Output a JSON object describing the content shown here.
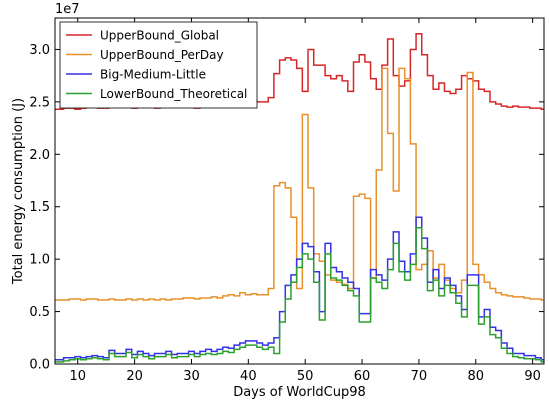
{
  "chart_data": {
    "type": "line",
    "step": true,
    "title": "",
    "xlabel": "Days of WorldCup98",
    "ylabel": "Total energy consumption (J)",
    "y_scale_label": "1e7",
    "xlim": [
      6,
      92
    ],
    "ylim": [
      0,
      3.3
    ],
    "x_ticks": [
      10,
      20,
      30,
      40,
      50,
      60,
      70,
      80,
      90
    ],
    "y_ticks": [
      0.0,
      0.5,
      1.0,
      1.5,
      2.0,
      2.5,
      3.0
    ],
    "grid": false,
    "legend_position": "top-left",
    "x": [
      6,
      7,
      8,
      9,
      10,
      11,
      12,
      13,
      14,
      15,
      16,
      17,
      18,
      19,
      20,
      21,
      22,
      23,
      24,
      25,
      26,
      27,
      28,
      29,
      30,
      31,
      32,
      33,
      34,
      35,
      36,
      37,
      38,
      39,
      40,
      41,
      42,
      43,
      44,
      45,
      46,
      47,
      48,
      49,
      50,
      51,
      52,
      53,
      54,
      55,
      56,
      57,
      58,
      59,
      60,
      61,
      62,
      63,
      64,
      65,
      66,
      67,
      68,
      69,
      70,
      71,
      72,
      73,
      74,
      75,
      76,
      77,
      78,
      79,
      80,
      81,
      82,
      83,
      84,
      85,
      86,
      87,
      88,
      89,
      90,
      91,
      92
    ],
    "series": [
      {
        "name": "UpperBound_Global",
        "color": "#d62728",
        "values": [
          2.43,
          2.43,
          2.44,
          2.44,
          2.43,
          2.44,
          2.45,
          2.45,
          2.44,
          2.44,
          2.47,
          2.45,
          2.46,
          2.45,
          2.44,
          2.46,
          2.45,
          2.46,
          2.44,
          2.45,
          2.47,
          2.45,
          2.45,
          2.46,
          2.45,
          2.44,
          2.46,
          2.47,
          2.48,
          2.47,
          2.48,
          2.48,
          2.5,
          2.5,
          2.52,
          2.52,
          2.5,
          2.5,
          2.54,
          2.77,
          2.9,
          2.92,
          2.9,
          2.82,
          2.6,
          3.0,
          2.85,
          2.85,
          2.75,
          2.72,
          2.75,
          2.7,
          2.6,
          2.88,
          2.95,
          2.88,
          2.72,
          2.62,
          2.85,
          3.1,
          2.75,
          2.65,
          2.7,
          3.0,
          3.15,
          2.95,
          2.75,
          2.62,
          2.68,
          2.6,
          2.58,
          2.62,
          2.75,
          2.72,
          2.7,
          2.62,
          2.6,
          2.5,
          2.48,
          2.46,
          2.45,
          2.46,
          2.45,
          2.45,
          2.44,
          2.44,
          2.43
        ]
      },
      {
        "name": "UpperBound_PerDay",
        "color": "#e8912a",
        "values": [
          0.61,
          0.61,
          0.61,
          0.62,
          0.62,
          0.61,
          0.62,
          0.62,
          0.61,
          0.61,
          0.62,
          0.61,
          0.61,
          0.62,
          0.61,
          0.62,
          0.61,
          0.62,
          0.61,
          0.62,
          0.61,
          0.62,
          0.62,
          0.63,
          0.63,
          0.62,
          0.63,
          0.63,
          0.64,
          0.63,
          0.65,
          0.66,
          0.65,
          0.68,
          0.66,
          0.67,
          0.66,
          0.66,
          0.72,
          1.7,
          1.73,
          1.68,
          1.4,
          0.72,
          2.38,
          1.68,
          1.05,
          0.98,
          0.85,
          0.8,
          0.78,
          0.76,
          0.72,
          1.6,
          1.62,
          1.58,
          0.82,
          1.85,
          2.82,
          2.2,
          1.65,
          2.82,
          2.72,
          2.1,
          0.9,
          0.95,
          1.08,
          0.82,
          0.95,
          0.8,
          0.72,
          0.68,
          0.8,
          2.78,
          0.95,
          0.85,
          0.78,
          0.72,
          0.68,
          0.66,
          0.65,
          0.64,
          0.64,
          0.63,
          0.62,
          0.62,
          0.61
        ]
      },
      {
        "name": "Big-Medium-Little",
        "color": "#3232e6",
        "values": [
          0.04,
          0.04,
          0.06,
          0.06,
          0.07,
          0.06,
          0.07,
          0.08,
          0.07,
          0.06,
          0.13,
          0.1,
          0.1,
          0.14,
          0.09,
          0.12,
          0.1,
          0.08,
          0.1,
          0.1,
          0.12,
          0.09,
          0.1,
          0.1,
          0.12,
          0.1,
          0.12,
          0.14,
          0.12,
          0.14,
          0.16,
          0.15,
          0.18,
          0.2,
          0.22,
          0.22,
          0.2,
          0.18,
          0.2,
          0.25,
          0.5,
          0.75,
          0.85,
          1.0,
          1.15,
          1.12,
          0.88,
          0.5,
          1.15,
          0.92,
          0.88,
          0.82,
          0.78,
          0.72,
          0.48,
          0.48,
          0.9,
          0.85,
          0.8,
          1.0,
          1.26,
          0.98,
          0.88,
          1.05,
          1.4,
          1.2,
          0.78,
          0.9,
          0.72,
          0.82,
          0.75,
          0.65,
          0.52,
          0.85,
          0.85,
          0.45,
          0.52,
          0.35,
          0.32,
          0.2,
          0.15,
          0.1,
          0.1,
          0.08,
          0.08,
          0.06,
          0.04
        ]
      },
      {
        "name": "LowerBound_Theoretical",
        "color": "#2ca02c",
        "values": [
          0.02,
          0.02,
          0.03,
          0.04,
          0.05,
          0.04,
          0.05,
          0.06,
          0.05,
          0.04,
          0.1,
          0.07,
          0.07,
          0.11,
          0.06,
          0.09,
          0.07,
          0.05,
          0.07,
          0.07,
          0.09,
          0.06,
          0.07,
          0.07,
          0.09,
          0.07,
          0.09,
          0.1,
          0.09,
          0.1,
          0.12,
          0.11,
          0.14,
          0.16,
          0.18,
          0.18,
          0.16,
          0.14,
          0.16,
          0.1,
          0.4,
          0.62,
          0.78,
          0.92,
          1.05,
          1.0,
          0.78,
          0.42,
          1.05,
          0.82,
          0.8,
          0.75,
          0.7,
          0.65,
          0.4,
          0.4,
          0.82,
          0.78,
          0.72,
          0.9,
          1.15,
          0.88,
          0.8,
          0.95,
          1.3,
          1.1,
          0.7,
          0.8,
          0.65,
          0.75,
          0.68,
          0.58,
          0.45,
          0.75,
          0.75,
          0.38,
          0.45,
          0.28,
          0.25,
          0.15,
          0.1,
          0.07,
          0.06,
          0.05,
          0.05,
          0.04,
          0.02
        ]
      }
    ]
  }
}
